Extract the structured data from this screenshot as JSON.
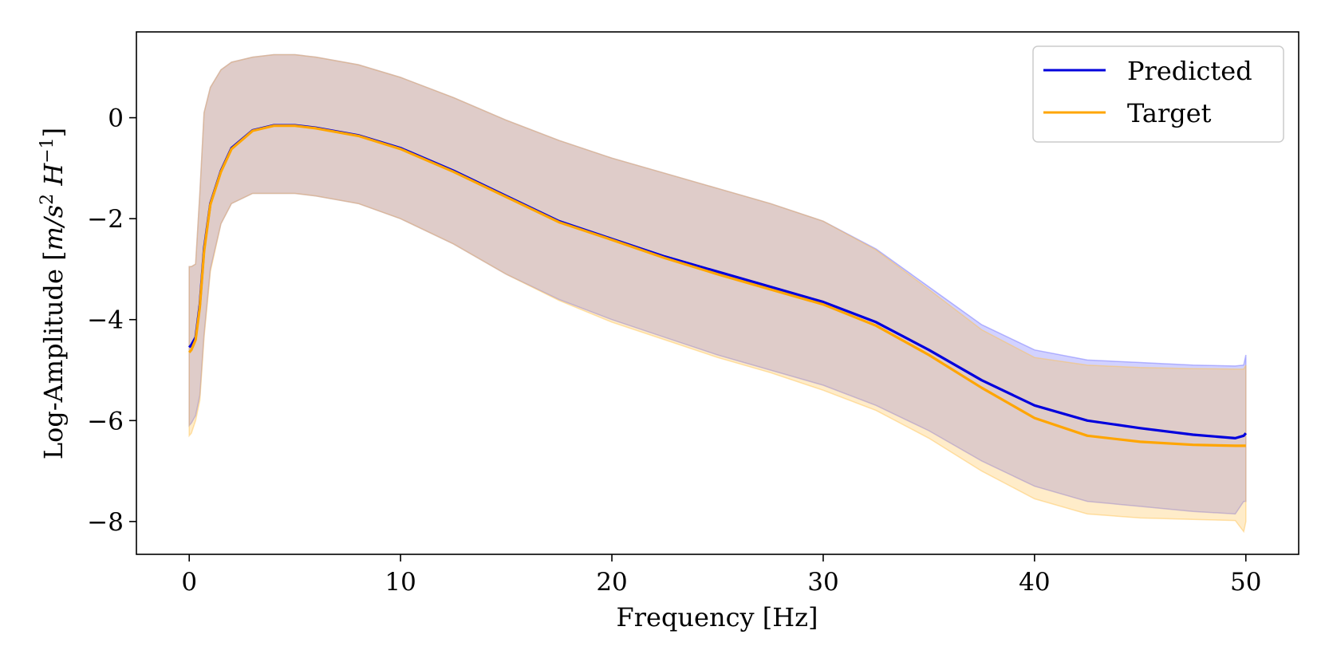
{
  "chart_data": {
    "type": "line",
    "title": "",
    "xlabel": "Frequency [Hz]",
    "ylabel": {
      "prefix": "Log-Amplitude [",
      "units": "m/s",
      "sq": "2",
      "h": " H",
      "hexp": "−1",
      "suffix": "]"
    },
    "xlim": [
      -2.5,
      52.5
    ],
    "ylim": [
      -8.65,
      1.7
    ],
    "x_ticks": [
      0,
      10,
      20,
      30,
      40,
      50
    ],
    "x_tick_labels": [
      "0",
      "10",
      "20",
      "30",
      "40",
      "50"
    ],
    "y_ticks": [
      0,
      -2,
      -4,
      -6,
      -8
    ],
    "y_tick_labels": [
      "0",
      "−2",
      "−4",
      "−6",
      "−8"
    ],
    "legend_position": "top-right",
    "series": [
      {
        "name": "Predicted",
        "color": "#0000dd",
        "band_color": "#6b6bff",
        "x": [
          0,
          0.1,
          0.3,
          0.5,
          0.7,
          1,
          1.5,
          2,
          3,
          4,
          5,
          6,
          8,
          10,
          12.5,
          15,
          17.5,
          20,
          22.5,
          25,
          27.5,
          30,
          32.5,
          35,
          37.5,
          40,
          42.5,
          45,
          47.5,
          49.5,
          49.9,
          50
        ],
        "mean": [
          -4.55,
          -4.5,
          -4.35,
          -3.7,
          -2.6,
          -1.7,
          -1.05,
          -0.6,
          -0.25,
          -0.15,
          -0.15,
          -0.2,
          -0.35,
          -0.6,
          -1.05,
          -1.55,
          -2.05,
          -2.4,
          -2.75,
          -3.05,
          -3.35,
          -3.65,
          -4.05,
          -4.6,
          -5.2,
          -5.7,
          -6.0,
          -6.15,
          -6.28,
          -6.35,
          -6.3,
          -6.25
        ],
        "upper": [
          -2.95,
          -2.95,
          -2.9,
          -1.5,
          0.1,
          0.6,
          0.95,
          1.1,
          1.2,
          1.25,
          1.25,
          1.2,
          1.05,
          0.8,
          0.4,
          -0.05,
          -0.45,
          -0.8,
          -1.1,
          -1.4,
          -1.7,
          -2.05,
          -2.6,
          -3.35,
          -4.1,
          -4.6,
          -4.8,
          -4.85,
          -4.9,
          -4.92,
          -4.9,
          -4.7
        ],
        "lower": [
          -6.1,
          -6.05,
          -5.9,
          -5.5,
          -4.3,
          -3.0,
          -2.1,
          -1.7,
          -1.5,
          -1.5,
          -1.5,
          -1.55,
          -1.7,
          -2.0,
          -2.5,
          -3.1,
          -3.6,
          -4.0,
          -4.35,
          -4.7,
          -5.0,
          -5.3,
          -5.7,
          -6.2,
          -6.8,
          -7.3,
          -7.6,
          -7.7,
          -7.8,
          -7.85,
          -7.6,
          -7.6
        ]
      },
      {
        "name": "Target",
        "color": "#ffa500",
        "band_color": "#ffc04d",
        "x": [
          0,
          0.1,
          0.3,
          0.5,
          0.7,
          1,
          1.5,
          2,
          3,
          4,
          5,
          6,
          8,
          10,
          12.5,
          15,
          17.5,
          20,
          22.5,
          25,
          27.5,
          30,
          32.5,
          35,
          37.5,
          40,
          42.5,
          45,
          47.5,
          49.5,
          49.9,
          50
        ],
        "mean": [
          -4.65,
          -4.6,
          -4.4,
          -3.75,
          -2.65,
          -1.72,
          -1.07,
          -0.62,
          -0.26,
          -0.16,
          -0.16,
          -0.21,
          -0.36,
          -0.62,
          -1.07,
          -1.57,
          -2.07,
          -2.42,
          -2.78,
          -3.1,
          -3.4,
          -3.7,
          -4.12,
          -4.7,
          -5.35,
          -5.95,
          -6.3,
          -6.42,
          -6.48,
          -6.5,
          -6.5,
          -6.5
        ],
        "upper": [
          -2.95,
          -2.95,
          -2.9,
          -1.5,
          0.1,
          0.6,
          0.95,
          1.1,
          1.2,
          1.25,
          1.25,
          1.2,
          1.05,
          0.8,
          0.4,
          -0.05,
          -0.45,
          -0.8,
          -1.1,
          -1.4,
          -1.7,
          -2.05,
          -2.62,
          -3.4,
          -4.2,
          -4.75,
          -4.9,
          -4.95,
          -4.97,
          -4.98,
          -4.98,
          -4.9
        ],
        "lower": [
          -6.3,
          -6.25,
          -6.0,
          -5.6,
          -4.35,
          -3.05,
          -2.1,
          -1.7,
          -1.5,
          -1.5,
          -1.5,
          -1.55,
          -1.7,
          -2.0,
          -2.5,
          -3.1,
          -3.62,
          -4.05,
          -4.4,
          -4.75,
          -5.05,
          -5.4,
          -5.8,
          -6.35,
          -7.0,
          -7.55,
          -7.85,
          -7.93,
          -7.96,
          -7.98,
          -8.2,
          -8.0
        ]
      }
    ]
  }
}
